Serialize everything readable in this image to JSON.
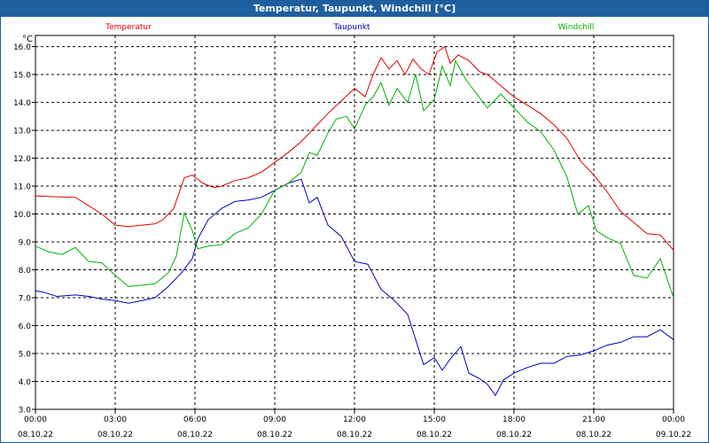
{
  "window": {
    "title": "Temperatur, Taupunkt, Windchill [°C]"
  },
  "chart_data": {
    "type": "line",
    "title": "Temperatur, Taupunkt, Windchill [°C]",
    "ylabel": "°C",
    "ylim": [
      3.0,
      16.4
    ],
    "y_ticks": [
      "16.0",
      "15.0",
      "14.0",
      "13.0",
      "12.0",
      "11.0",
      "10.0",
      "9.0",
      "8.0",
      "7.0",
      "6.0",
      "5.0",
      "4.0",
      "3.0"
    ],
    "xlim": [
      0,
      24
    ],
    "x_ticks": [
      {
        "time": "00:00",
        "date": "08.10.22"
      },
      {
        "time": "03:00",
        "date": "08.10.22"
      },
      {
        "time": "06:00",
        "date": "08.10.22"
      },
      {
        "time": "09:00",
        "date": "08.10.22"
      },
      {
        "time": "12:00",
        "date": "08.10.22"
      },
      {
        "time": "15:00",
        "date": "08.10.22"
      },
      {
        "time": "18:00",
        "date": "08.10.22"
      },
      {
        "time": "21:00",
        "date": "08.10.22"
      },
      {
        "time": "00:00",
        "date": "09.10.22"
      }
    ],
    "grid": true,
    "series": [
      {
        "name": "Temperatur",
        "color": "#e00000",
        "points": [
          [
            0,
            10.65
          ],
          [
            0.7,
            10.62
          ],
          [
            1.5,
            10.6
          ],
          [
            2.0,
            10.3
          ],
          [
            2.5,
            10.0
          ],
          [
            3.0,
            9.6
          ],
          [
            3.5,
            9.55
          ],
          [
            4.0,
            9.6
          ],
          [
            4.5,
            9.65
          ],
          [
            4.8,
            9.8
          ],
          [
            5.2,
            10.2
          ],
          [
            5.6,
            11.3
          ],
          [
            5.9,
            11.4
          ],
          [
            6.3,
            11.1
          ],
          [
            6.7,
            10.95
          ],
          [
            7.0,
            11.0
          ],
          [
            7.5,
            11.2
          ],
          [
            8.0,
            11.3
          ],
          [
            8.5,
            11.5
          ],
          [
            9.0,
            11.85
          ],
          [
            9.5,
            12.2
          ],
          [
            10.0,
            12.6
          ],
          [
            10.5,
            13.1
          ],
          [
            11.0,
            13.6
          ],
          [
            11.5,
            14.05
          ],
          [
            12.0,
            14.5
          ],
          [
            12.4,
            14.2
          ],
          [
            12.7,
            15.0
          ],
          [
            13.0,
            15.6
          ],
          [
            13.3,
            15.2
          ],
          [
            13.6,
            15.5
          ],
          [
            13.9,
            15.0
          ],
          [
            14.2,
            15.55
          ],
          [
            14.5,
            15.2
          ],
          [
            14.8,
            15.0
          ],
          [
            15.1,
            15.8
          ],
          [
            15.4,
            16.0
          ],
          [
            15.6,
            15.4
          ],
          [
            15.9,
            15.7
          ],
          [
            16.3,
            15.5
          ],
          [
            16.7,
            15.1
          ],
          [
            17.0,
            15.0
          ],
          [
            17.5,
            14.6
          ],
          [
            18.0,
            14.2
          ],
          [
            18.5,
            13.9
          ],
          [
            19.0,
            13.6
          ],
          [
            19.5,
            13.2
          ],
          [
            20.0,
            12.7
          ],
          [
            20.5,
            11.9
          ],
          [
            21.0,
            11.4
          ],
          [
            21.5,
            10.8
          ],
          [
            22.0,
            10.1
          ],
          [
            22.5,
            9.7
          ],
          [
            23.0,
            9.3
          ],
          [
            23.5,
            9.25
          ],
          [
            24.0,
            8.7
          ]
        ]
      },
      {
        "name": "Taupunkt",
        "color": "#0000c0",
        "points": [
          [
            0,
            7.25
          ],
          [
            0.3,
            7.2
          ],
          [
            0.8,
            7.05
          ],
          [
            1.5,
            7.1
          ],
          [
            2.0,
            7.05
          ],
          [
            2.5,
            6.95
          ],
          [
            3.0,
            6.9
          ],
          [
            3.5,
            6.8
          ],
          [
            4.0,
            6.9
          ],
          [
            4.5,
            7.0
          ],
          [
            5.0,
            7.4
          ],
          [
            5.5,
            7.9
          ],
          [
            5.9,
            8.4
          ],
          [
            6.1,
            9.1
          ],
          [
            6.5,
            9.8
          ],
          [
            7.0,
            10.2
          ],
          [
            7.5,
            10.45
          ],
          [
            8.0,
            10.5
          ],
          [
            8.5,
            10.6
          ],
          [
            9.0,
            10.85
          ],
          [
            9.5,
            11.1
          ],
          [
            10.0,
            11.25
          ],
          [
            10.3,
            10.4
          ],
          [
            10.6,
            10.6
          ],
          [
            11.0,
            9.6
          ],
          [
            11.5,
            9.2
          ],
          [
            12.0,
            8.3
          ],
          [
            12.5,
            8.2
          ],
          [
            13.0,
            7.3
          ],
          [
            13.5,
            6.9
          ],
          [
            14.0,
            6.4
          ],
          [
            14.3,
            5.5
          ],
          [
            14.6,
            4.6
          ],
          [
            15.0,
            4.85
          ],
          [
            15.3,
            4.4
          ],
          [
            15.6,
            4.8
          ],
          [
            16.0,
            5.25
          ],
          [
            16.3,
            4.3
          ],
          [
            16.7,
            4.1
          ],
          [
            17.0,
            3.9
          ],
          [
            17.3,
            3.5
          ],
          [
            17.6,
            4.05
          ],
          [
            18.0,
            4.3
          ],
          [
            18.5,
            4.5
          ],
          [
            19.0,
            4.65
          ],
          [
            19.5,
            4.65
          ],
          [
            20.0,
            4.9
          ],
          [
            20.5,
            4.95
          ],
          [
            21.0,
            5.1
          ],
          [
            21.5,
            5.3
          ],
          [
            22.0,
            5.4
          ],
          [
            22.5,
            5.6
          ],
          [
            23.0,
            5.6
          ],
          [
            23.5,
            5.85
          ],
          [
            24.0,
            5.5
          ]
        ]
      },
      {
        "name": "Windchill",
        "color": "#00b000",
        "points": [
          [
            0,
            8.85
          ],
          [
            0.5,
            8.65
          ],
          [
            1.0,
            8.55
          ],
          [
            1.5,
            8.8
          ],
          [
            2.0,
            8.3
          ],
          [
            2.5,
            8.25
          ],
          [
            3.0,
            7.8
          ],
          [
            3.5,
            7.4
          ],
          [
            4.0,
            7.45
          ],
          [
            4.5,
            7.5
          ],
          [
            5.0,
            7.9
          ],
          [
            5.3,
            8.5
          ],
          [
            5.6,
            10.05
          ],
          [
            5.9,
            9.4
          ],
          [
            6.1,
            8.75
          ],
          [
            6.5,
            8.85
          ],
          [
            7.0,
            8.9
          ],
          [
            7.5,
            9.3
          ],
          [
            8.0,
            9.5
          ],
          [
            8.5,
            10.0
          ],
          [
            9.0,
            10.85
          ],
          [
            9.5,
            11.1
          ],
          [
            10.0,
            11.5
          ],
          [
            10.3,
            12.2
          ],
          [
            10.6,
            12.1
          ],
          [
            11.0,
            12.9
          ],
          [
            11.3,
            13.4
          ],
          [
            11.7,
            13.5
          ],
          [
            12.0,
            13.05
          ],
          [
            12.4,
            13.9
          ],
          [
            12.7,
            14.2
          ],
          [
            13.0,
            14.7
          ],
          [
            13.3,
            13.9
          ],
          [
            13.6,
            14.5
          ],
          [
            14.0,
            14.0
          ],
          [
            14.3,
            15.0
          ],
          [
            14.6,
            13.7
          ],
          [
            15.0,
            14.1
          ],
          [
            15.3,
            15.3
          ],
          [
            15.6,
            14.6
          ],
          [
            15.8,
            15.5
          ],
          [
            16.2,
            14.8
          ],
          [
            16.6,
            14.3
          ],
          [
            17.0,
            13.8
          ],
          [
            17.5,
            14.3
          ],
          [
            18.0,
            13.8
          ],
          [
            18.5,
            13.3
          ],
          [
            19.0,
            12.95
          ],
          [
            19.5,
            12.3
          ],
          [
            20.0,
            11.3
          ],
          [
            20.4,
            10.0
          ],
          [
            20.8,
            10.3
          ],
          [
            21.1,
            9.4
          ],
          [
            21.5,
            9.15
          ],
          [
            22.0,
            8.95
          ],
          [
            22.5,
            7.8
          ],
          [
            23.0,
            7.7
          ],
          [
            23.5,
            8.4
          ],
          [
            24.0,
            7.0
          ]
        ]
      }
    ]
  }
}
